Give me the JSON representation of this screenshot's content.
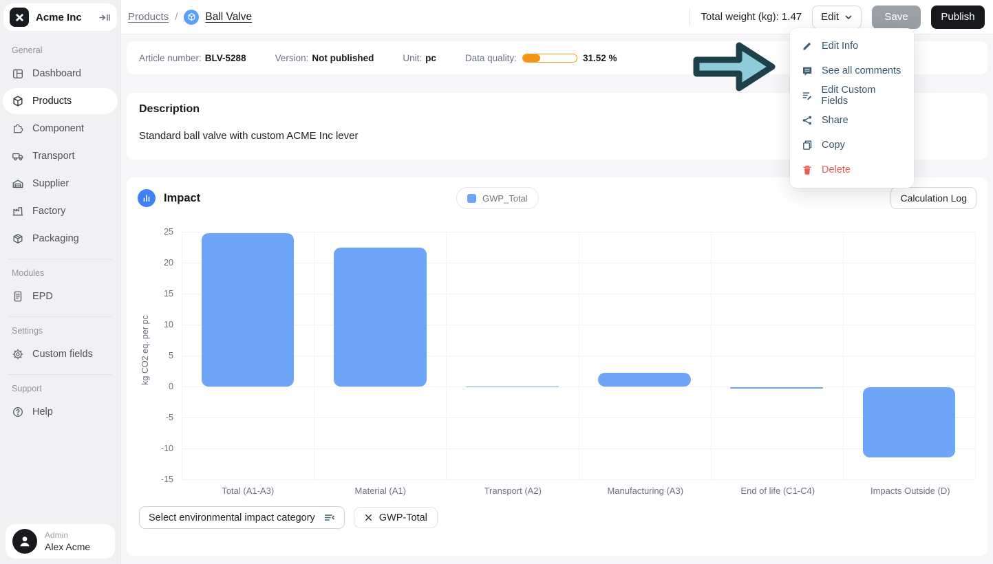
{
  "sidebar": {
    "company": "Acme Inc",
    "sections": [
      {
        "label": "General",
        "items": [
          {
            "label": "Dashboard",
            "icon": "dashboard-icon",
            "active": false
          },
          {
            "label": "Products",
            "icon": "products-cube-icon",
            "active": true
          },
          {
            "label": "Component",
            "icon": "component-puzzle-icon",
            "active": false
          },
          {
            "label": "Transport",
            "icon": "transport-truck-icon",
            "active": false
          },
          {
            "label": "Supplier",
            "icon": "supplier-warehouse-icon",
            "active": false
          },
          {
            "label": "Factory",
            "icon": "factory-icon",
            "active": false
          },
          {
            "label": "Packaging",
            "icon": "packaging-box-icon",
            "active": false
          }
        ]
      },
      {
        "label": "Modules",
        "items": [
          {
            "label": "EPD",
            "icon": "epd-document-icon",
            "active": false
          }
        ]
      },
      {
        "label": "Settings",
        "items": [
          {
            "label": "Custom fields",
            "icon": "gear-icon",
            "active": false
          }
        ]
      },
      {
        "label": "Support",
        "items": [
          {
            "label": "Help",
            "icon": "help-circle-icon",
            "active": false
          }
        ]
      }
    ],
    "user": {
      "role": "Admin",
      "name": "Alex Acme"
    }
  },
  "header": {
    "breadcrumb_products": "Products",
    "breadcrumb_sep": "/",
    "breadcrumb_current": "Ball Valve",
    "total_weight": "Total weight (kg): 1.47",
    "edit": "Edit",
    "save": "Save",
    "publish": "Publish"
  },
  "edit_menu": {
    "items": [
      {
        "label": "Edit Info",
        "icon": "pencil-icon",
        "danger": false
      },
      {
        "label": "See all comments",
        "icon": "comment-icon",
        "danger": false
      },
      {
        "label": "Edit Custom Fields",
        "icon": "list-edit-icon",
        "danger": false
      },
      {
        "label": "Share",
        "icon": "share-icon",
        "danger": false
      },
      {
        "label": "Copy",
        "icon": "copy-icon",
        "danger": false
      },
      {
        "label": "Delete",
        "icon": "trash-icon",
        "danger": true
      }
    ]
  },
  "info_bar": {
    "article_label": "Article number:",
    "article_value": "BLV-5288",
    "version_label": "Version:",
    "version_value": "Not published",
    "unit_label": "Unit:",
    "unit_value": "pc",
    "quality_label": "Data quality:",
    "quality_percent": 31.52,
    "quality_text": "31.52 %"
  },
  "description": {
    "title": "Description",
    "body": "Standard ball valve with custom ACME Inc lever"
  },
  "impact": {
    "title": "Impact",
    "legend": "GWP_Total",
    "calc_log": "Calculation Log",
    "select_category": "Select environmental impact category",
    "chip": "GWP-Total",
    "chip_close": "×"
  },
  "chart_data": {
    "type": "bar",
    "title": "Impact",
    "series_name": "GWP_Total",
    "categories": [
      "Total (A1-A3)",
      "Material (A1)",
      "Transport (A2)",
      "Manufacturing (A3)",
      "End of life (C1-C4)",
      "Impacts Outside (D)"
    ],
    "values": [
      24.8,
      22.4,
      0.05,
      2.2,
      -0.2,
      -11.3
    ],
    "ylabel": "kg CO2 eq. per pc",
    "ylim": [
      -15,
      25
    ],
    "yticks": [
      25,
      20,
      15,
      10,
      5,
      0,
      -5,
      -10,
      -15
    ],
    "grid": true,
    "legend_position": "top-center",
    "bar_color": "#6FA5F7"
  },
  "colors": {
    "bar_blue": "#6FA5F7",
    "quality_orange": "#F59414",
    "arrow_fill": "#8FCCD9",
    "arrow_stroke": "#1E4049",
    "danger_red": "#F2594D",
    "accent_blue": "#3E83F6"
  }
}
